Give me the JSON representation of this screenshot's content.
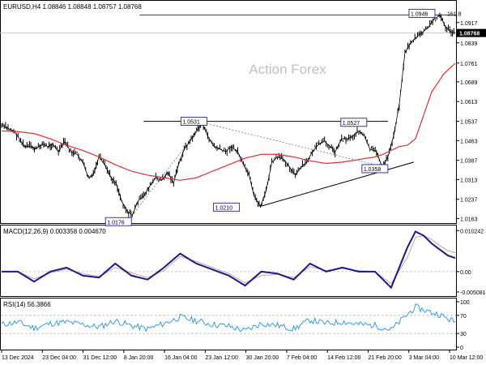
{
  "chart_data": {
    "type": "line",
    "subtype": "candlestick-ohlc",
    "title": "EURUSD,H4  1.08846 1.08848 1.08757 1.08768",
    "watermark": "Action Forex",
    "price_axis": {
      "ylim": [
        1.0155,
        1.096
      ],
      "ticks": [
        "1.0917",
        "1.0839",
        "1.0761",
        "1.0689",
        "1.0613",
        "1.0537",
        "1.0463",
        "1.0387",
        "1.0313",
        "1.0237",
        "1.0163"
      ],
      "current_price_label": "1.08768",
      "current_price": 1.08768
    },
    "x_axis": {
      "tick_labels": [
        "13 Dec 2024",
        "23 Dec 04:00",
        "31 Dec 12:00",
        "8 Jan 20:00",
        "16 Jan 04:00",
        "23 Jan 12:00",
        "30 Jan 20:00",
        "7 Feb 04:00",
        "14 Feb 12:00",
        "21 Feb 20:00",
        "3 Mar 04:00",
        "10 Mar 12:00"
      ]
    },
    "price_path": {
      "x": [
        0,
        8,
        15,
        22,
        28,
        36,
        42,
        50,
        57,
        63,
        70,
        78,
        85,
        93,
        100,
        107,
        113,
        120,
        127,
        135,
        141,
        148,
        155,
        161,
        168,
        175,
        183,
        190,
        197,
        205,
        212,
        218,
        225,
        232,
        240,
        247,
        254,
        262,
        269,
        276,
        283,
        291,
        298,
        305,
        311,
        319,
        326,
        333,
        340,
        348,
        355,
        362,
        369,
        376,
        383,
        391,
        398,
        405,
        411,
        419,
        426,
        433,
        440,
        447,
        454,
        462,
        469,
        476,
        483,
        490,
        497,
        504,
        511,
        519,
        526,
        533,
        540,
        547,
        554,
        559
      ],
      "values": [
        1.052,
        1.051,
        1.05,
        1.047,
        1.044,
        1.044,
        1.043,
        1.045,
        1.044,
        1.045,
        1.042,
        1.046,
        1.042,
        1.041,
        1.038,
        1.032,
        1.033,
        1.04,
        1.037,
        1.032,
        1.03,
        1.023,
        1.019,
        1.0176,
        1.023,
        1.025,
        1.029,
        1.032,
        1.031,
        1.034,
        1.03,
        1.037,
        1.043,
        1.046,
        1.05,
        1.0531,
        1.048,
        1.044,
        1.043,
        1.042,
        1.044,
        1.042,
        1.037,
        1.033,
        1.025,
        1.021,
        1.027,
        1.038,
        1.04,
        1.039,
        1.036,
        1.033,
        1.036,
        1.038,
        1.042,
        1.045,
        1.046,
        1.044,
        1.042,
        1.047,
        1.047,
        1.048,
        1.05,
        1.048,
        1.043,
        1.042,
        1.036,
        1.04,
        1.048,
        1.06,
        1.08,
        1.084,
        1.086,
        1.088,
        1.09,
        1.093,
        1.0946,
        1.09,
        1.088,
        1.08768
      ]
    },
    "series": [
      {
        "values": [
          1.05,
          1.0497,
          1.049,
          1.047,
          1.0445,
          1.0425,
          1.04,
          1.037,
          1.0345,
          1.033,
          1.032,
          1.031,
          1.032,
          1.0345,
          1.037,
          1.0395,
          1.041,
          1.041,
          1.04,
          1.0385,
          1.0375,
          1.038,
          1.039,
          1.04,
          1.041,
          1.0425,
          1.044,
          1.0445,
          1.047,
          1.056,
          1.065,
          1.072,
          1.076
        ],
        "x": [
          0,
          20,
          40,
          60,
          80,
          100,
          120,
          140,
          160,
          180,
          200,
          220,
          240,
          260,
          280,
          300,
          320,
          340,
          360,
          380,
          400,
          420,
          440,
          460,
          470,
          480,
          490,
          500,
          510,
          520,
          530,
          545,
          559
        ]
      }
    ],
    "annotations": [
      {
        "label": "1.0531",
        "x": 247,
        "y": 1.0531
      },
      {
        "label": "1.0176",
        "x": 161,
        "y": 1.0176
      },
      {
        "label": "1.0210",
        "x": 319,
        "y": 1.021
      },
      {
        "label": "1.0527",
        "x": 448,
        "y": 1.0527
      },
      {
        "label": "1.0358",
        "x": 476,
        "y": 1.0358
      },
      {
        "label": "1.0946",
        "x": 540,
        "y": 1.0946
      },
      {
        "label": "161.8",
        "x": 547,
        "y": 1.0946
      }
    ],
    "macd": {
      "label": "MACD(12,26,9) 0.003358 0.004670",
      "ylim": [
        -0.0055,
        0.0107
      ],
      "ticks": [
        "0.010242",
        "0.00",
        "-0.005081"
      ],
      "x": [
        0,
        20,
        40,
        60,
        80,
        100,
        120,
        140,
        160,
        180,
        200,
        220,
        240,
        260,
        280,
        300,
        320,
        340,
        360,
        380,
        400,
        420,
        440,
        460,
        480,
        500,
        510,
        520,
        530,
        540,
        550,
        559
      ],
      "macd_values": [
        0.0,
        0.0,
        -0.0025,
        0.0,
        0.001,
        -0.001,
        -0.0015,
        0.002,
        -0.001,
        -0.002,
        0.001,
        0.0045,
        0.002,
        0.0005,
        -0.001,
        -0.0035,
        0.0,
        -0.0005,
        -0.002,
        0.002,
        0.0,
        0.001,
        0.0,
        0.0,
        -0.004,
        0.006,
        0.01,
        0.009,
        0.007,
        0.0055,
        0.004,
        0.0034
      ],
      "signal_values": [
        0.0,
        0.0,
        -0.0018,
        -0.0003,
        0.0006,
        -0.0005,
        -0.0012,
        0.001,
        -0.0003,
        -0.0015,
        0.0003,
        0.0038,
        0.0025,
        0.001,
        -0.0005,
        -0.0028,
        -0.001,
        -0.0007,
        -0.0015,
        0.0012,
        0.0003,
        0.0008,
        0.0002,
        0.0,
        -0.003,
        0.0035,
        0.0085,
        0.009,
        0.008,
        0.0065,
        0.0052,
        0.0047
      ]
    },
    "rsi": {
      "label": "RSI(14) 56.3866",
      "ylim": [
        0,
        100
      ],
      "ticks": [
        100,
        70,
        30,
        0
      ],
      "x": [
        0,
        20,
        40,
        60,
        80,
        100,
        120,
        140,
        160,
        180,
        200,
        220,
        240,
        260,
        280,
        300,
        320,
        340,
        360,
        380,
        400,
        420,
        440,
        460,
        480,
        500,
        510,
        520,
        530,
        540,
        550,
        559
      ],
      "values": [
        50,
        55,
        42,
        52,
        55,
        50,
        44,
        58,
        47,
        40,
        52,
        66,
        58,
        50,
        46,
        36,
        52,
        48,
        40,
        60,
        52,
        56,
        50,
        48,
        38,
        72,
        88,
        82,
        76,
        72,
        62,
        56.39
      ]
    }
  }
}
